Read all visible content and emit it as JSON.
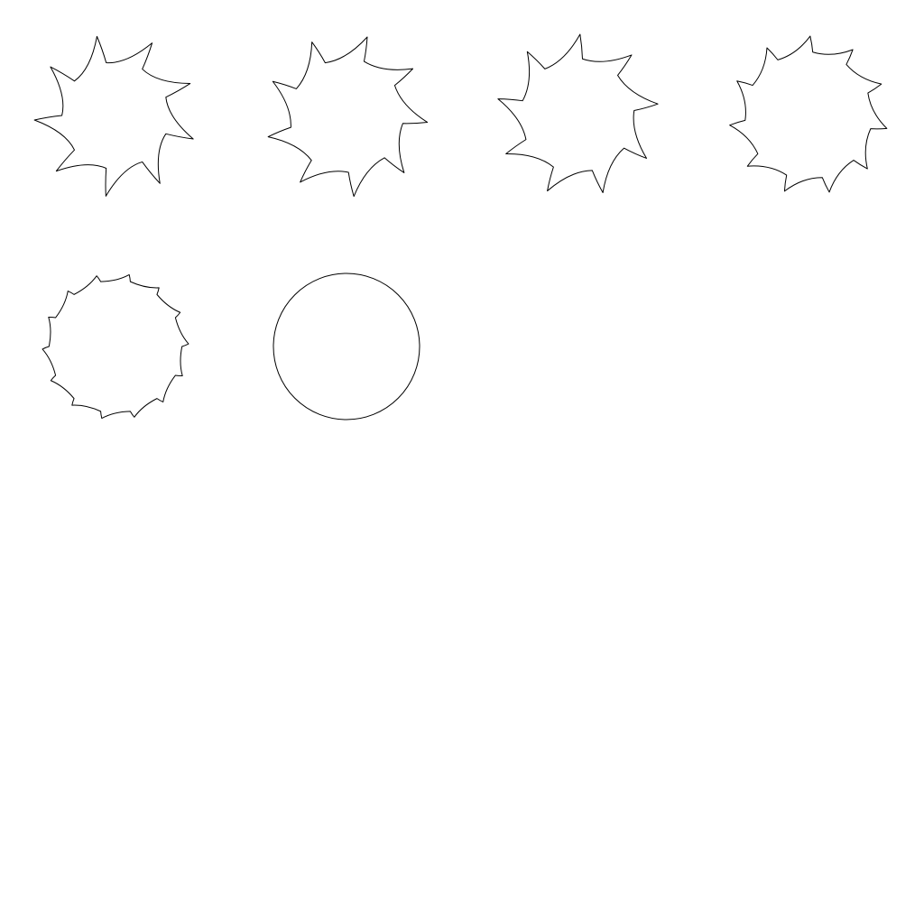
{
  "shapes": [
    {
      "kind": "sawblade",
      "teeth": 9,
      "tooth_depth": 0.34,
      "rotation_deg": -20,
      "chirality": 1
    },
    {
      "kind": "sawblade",
      "teeth": 9,
      "tooth_depth": 0.3,
      "rotation_deg": 8,
      "chirality": 1
    },
    {
      "kind": "sawblade",
      "teeth": 9,
      "tooth_depth": 0.3,
      "rotation_deg": -5,
      "chirality": 1
    },
    {
      "kind": "sawblade",
      "teeth": 11,
      "tooth_depth": 0.2,
      "rotation_deg": 12,
      "chirality": 1
    },
    {
      "kind": "sawblade",
      "teeth": 14,
      "tooth_depth": 0.09,
      "rotation_deg": 0,
      "chirality": 1
    },
    {
      "kind": "circle",
      "teeth": 0,
      "tooth_depth": 0,
      "rotation_deg": 0,
      "chirality": 1
    }
  ],
  "colors": {
    "stroke": "#000000",
    "background": "#ffffff"
  }
}
